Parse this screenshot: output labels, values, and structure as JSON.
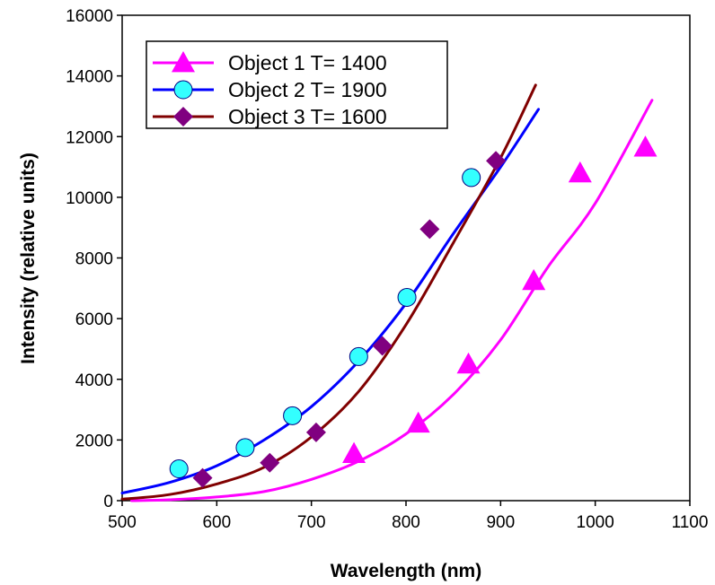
{
  "chart_data": {
    "type": "scatter",
    "title": "",
    "xlabel": "Wavelength (nm)",
    "ylabel": "Intensity (relative units)",
    "xlim": [
      500,
      1100
    ],
    "ylim": [
      0,
      16000
    ],
    "x_ticks": [
      "500",
      "600",
      "700",
      "800",
      "900",
      "1000",
      "1100"
    ],
    "y_ticks": [
      "0",
      "2000",
      "4000",
      "6000",
      "8000",
      "10000",
      "12000",
      "14000",
      "16000"
    ],
    "grid": false,
    "legend_position": "top-left",
    "series": [
      {
        "name": "Object 1  T= 1400",
        "color": "#ff00ff",
        "marker": "triangle",
        "points": [
          [
            745,
            1550
          ],
          [
            813,
            2550
          ],
          [
            866,
            4500
          ],
          [
            935,
            7250
          ],
          [
            984,
            10800
          ],
          [
            1053,
            11650
          ]
        ],
        "curve": [
          [
            510,
            0
          ],
          [
            550,
            30
          ],
          [
            600,
            120
          ],
          [
            650,
            300
          ],
          [
            700,
            700
          ],
          [
            750,
            1300
          ],
          [
            800,
            2200
          ],
          [
            850,
            3500
          ],
          [
            900,
            5300
          ],
          [
            950,
            7700
          ],
          [
            1000,
            9800
          ],
          [
            1060,
            13200
          ]
        ]
      },
      {
        "name": "Object 2  T= 1900",
        "color": "#0000ff",
        "marker_color": "#33ffff",
        "marker": "circle",
        "points": [
          [
            560,
            1050
          ],
          [
            630,
            1750
          ],
          [
            680,
            2800
          ],
          [
            750,
            4750
          ],
          [
            801,
            6700
          ],
          [
            869,
            10650
          ]
        ],
        "curve": [
          [
            500,
            250
          ],
          [
            550,
            600
          ],
          [
            600,
            1150
          ],
          [
            650,
            2000
          ],
          [
            700,
            3100
          ],
          [
            750,
            4600
          ],
          [
            800,
            6500
          ],
          [
            850,
            8800
          ],
          [
            900,
            11000
          ],
          [
            940,
            12900
          ]
        ]
      },
      {
        "name": "Object 3  T= 1600",
        "color": "#800000",
        "marker_color": "#800080",
        "marker": "diamond",
        "points": [
          [
            585,
            750
          ],
          [
            656,
            1250
          ],
          [
            705,
            2250
          ],
          [
            775,
            5100
          ],
          [
            825,
            8950
          ],
          [
            895,
            11200
          ]
        ],
        "curve": [
          [
            500,
            50
          ],
          [
            550,
            200
          ],
          [
            600,
            550
          ],
          [
            650,
            1100
          ],
          [
            700,
            2100
          ],
          [
            750,
            3600
          ],
          [
            800,
            5800
          ],
          [
            850,
            8500
          ],
          [
            900,
            11300
          ],
          [
            937,
            13700
          ]
        ]
      }
    ]
  }
}
